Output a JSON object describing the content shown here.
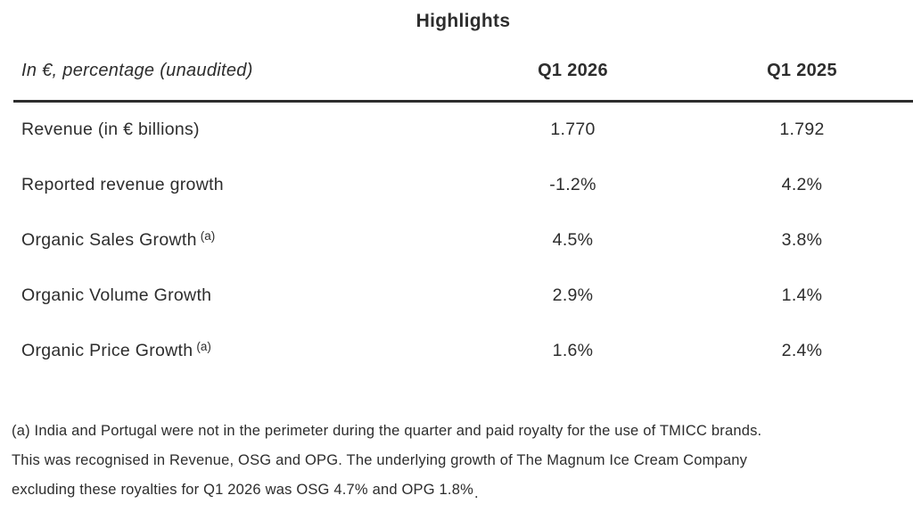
{
  "title": "Highlights",
  "table": {
    "header": {
      "label": "In €, percentage (unaudited)",
      "col_2026": "Q1 2026",
      "col_2025": "Q1 2025"
    },
    "rows": [
      {
        "label": "Revenue (in € billions)",
        "sup": "",
        "q1_2026": "1.770",
        "q1_2025": "1.792"
      },
      {
        "label": "Reported revenue growth",
        "sup": "",
        "q1_2026": "-1.2%",
        "q1_2025": "4.2%"
      },
      {
        "label": "Organic Sales Growth",
        "sup": "(a)",
        "q1_2026": "4.5%",
        "q1_2025": "3.8%"
      },
      {
        "label": "Organic Volume Growth",
        "sup": "",
        "q1_2026": "2.9%",
        "q1_2025": "1.4%"
      },
      {
        "label": "Organic Price Growth",
        "sup": "(a)",
        "q1_2026": "1.6%",
        "q1_2025": "2.4%"
      }
    ]
  },
  "footnote": {
    "lines": [
      "(a) India and Portugal were not in the perimeter during the quarter and paid royalty for the use of TMICC brands.",
      "This was recognised in Revenue, OSG and OPG. The underlying growth of The Magnum Ice Cream Company",
      "excluding these royalties for Q1 2026 was OSG 4.7% and OPG 1.8%"
    ],
    "trailing_period": "."
  },
  "colors": {
    "text": "#2d2d2d",
    "rule": "#2d2d2d",
    "background": "#ffffff"
  }
}
